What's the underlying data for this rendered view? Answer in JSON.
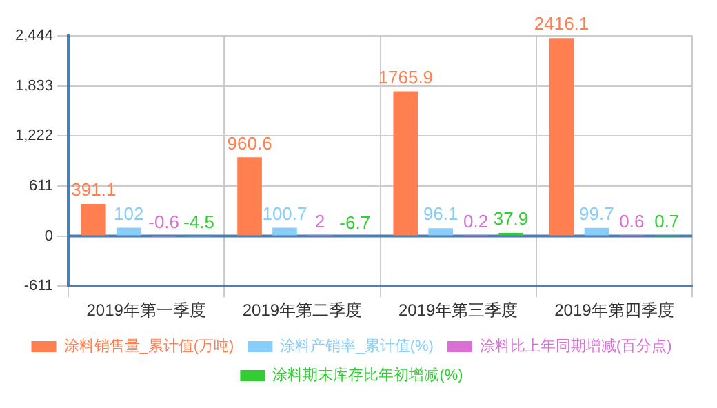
{
  "chart_data": {
    "type": "bar",
    "categories": [
      "2019年第一季度",
      "2019年第二季度",
      "2019年第三季度",
      "2019年第四季度"
    ],
    "series": [
      {
        "name": "涂料销售量_累计值(万吨)",
        "color": "#ff7f50",
        "values": [
          391.1,
          960.6,
          1765.9,
          2416.1
        ]
      },
      {
        "name": "涂料产销率_累计值(%)",
        "color": "#87cefa",
        "values": [
          102,
          100.7,
          96.1,
          99.7
        ]
      },
      {
        "name": "涂料比上年同期增减(百分点)",
        "color": "#da70d6",
        "values": [
          -0.6,
          2,
          0.2,
          0.6
        ]
      },
      {
        "name": "涂料期末库存比年初增减(%)",
        "color": "#32cd32",
        "values": [
          -4.5,
          -6.7,
          37.9,
          0.7
        ]
      }
    ],
    "ylim": [
      -611,
      2444
    ],
    "yticks": [
      -611,
      0,
      611,
      {
        "value": 1222,
        "label": "1,222"
      },
      {
        "value": 1833,
        "label": "1,833"
      },
      {
        "value": 2444,
        "label": "2,444"
      }
    ],
    "ref_lines": [
      {
        "axis": "y",
        "value": 0,
        "color": "#4a7fb5"
      }
    ],
    "grid": true,
    "legend": "bottom",
    "data_labels": true
  }
}
